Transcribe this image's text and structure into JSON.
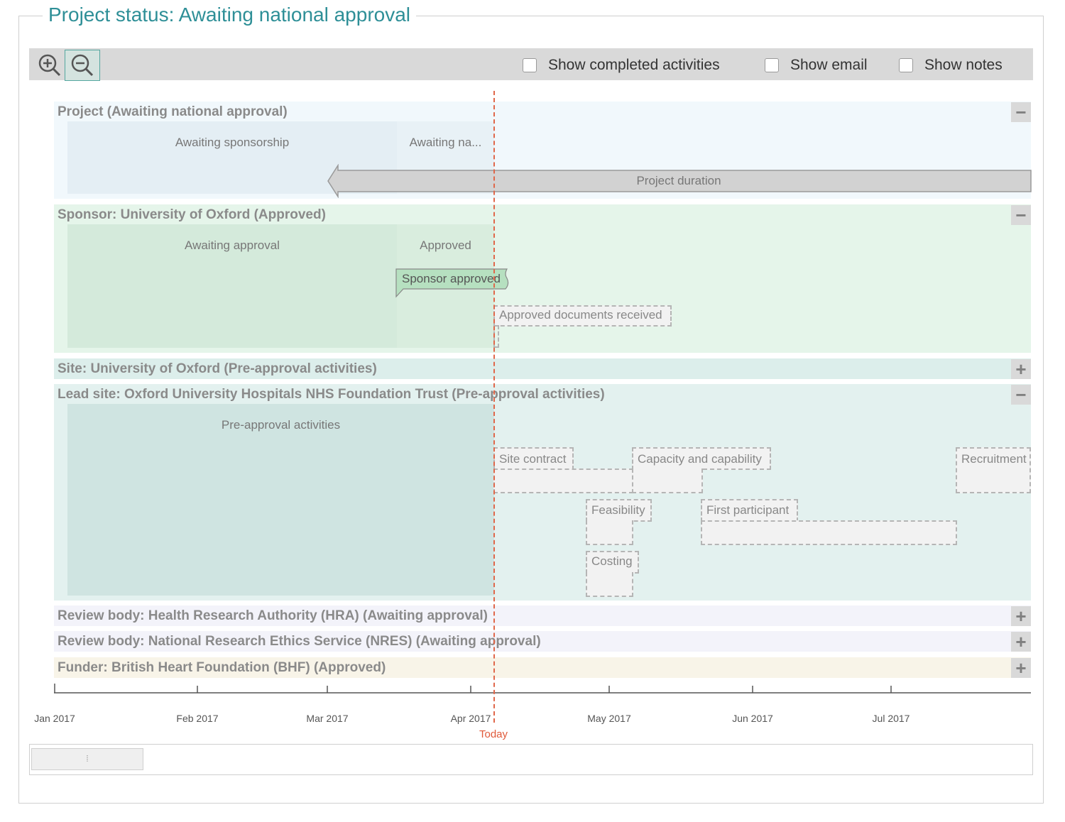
{
  "panel": {
    "title": "Project status: Awaiting national approval"
  },
  "toolbar": {
    "zoom_in_icon": "zoom-in-icon",
    "zoom_out_icon": "zoom-out-icon",
    "checkboxes": [
      {
        "label": "Show completed activities",
        "checked": false
      },
      {
        "label": "Show email",
        "checked": false
      },
      {
        "label": "Show notes",
        "checked": false
      }
    ]
  },
  "groups": {
    "project": {
      "label": "Project (Awaiting national approval)",
      "toggle": "−",
      "phases": [
        "Awaiting sponsorship",
        "Awaiting na..."
      ],
      "duration_label": "Project duration"
    },
    "sponsor": {
      "label": "Sponsor: University of Oxford (Approved)",
      "toggle": "−",
      "phases": [
        "Awaiting approval",
        "Approved"
      ],
      "milestones": [
        "Sponsor approved",
        "Approved documents received"
      ]
    },
    "site": {
      "label": "Site: University of Oxford (Pre-approval activities)",
      "toggle": "+"
    },
    "lead_site": {
      "label": "Lead site: Oxford University Hospitals NHS Foundation Trust (Pre-approval activities)",
      "toggle": "−",
      "phase": "Pre-approval activities",
      "activities": [
        "Site contract",
        "Capacity and capability",
        "Recruitment",
        "Feasibility",
        "First participant",
        "Costing"
      ]
    },
    "hra": {
      "label": "Review body: Health Research Authority (HRA) (Awaiting approval)",
      "toggle": "+"
    },
    "nres": {
      "label": "Review body: National Research Ethics Service (NRES) (Awaiting approval)",
      "toggle": "+"
    },
    "funder": {
      "label": "Funder: British Heart Foundation (BHF) (Approved)",
      "toggle": "+"
    }
  },
  "axis": {
    "ticks": [
      "Jan 2017",
      "Feb 2017",
      "Mar 2017",
      "Apr 2017",
      "May 2017",
      "Jun 2017",
      "Jul 2017"
    ],
    "today_label": "Today"
  },
  "scrollbar": {
    "grip": "⦙"
  },
  "colors": {
    "accent": "#2e8f97",
    "project_bg": "#f1f8fc",
    "sponsor_bg": "#e5f5ea",
    "site_bg": "#e3f1ef",
    "review_bg": "#f3f3fa",
    "funder_bg": "#f8f4e8",
    "today": "#e0674a"
  }
}
